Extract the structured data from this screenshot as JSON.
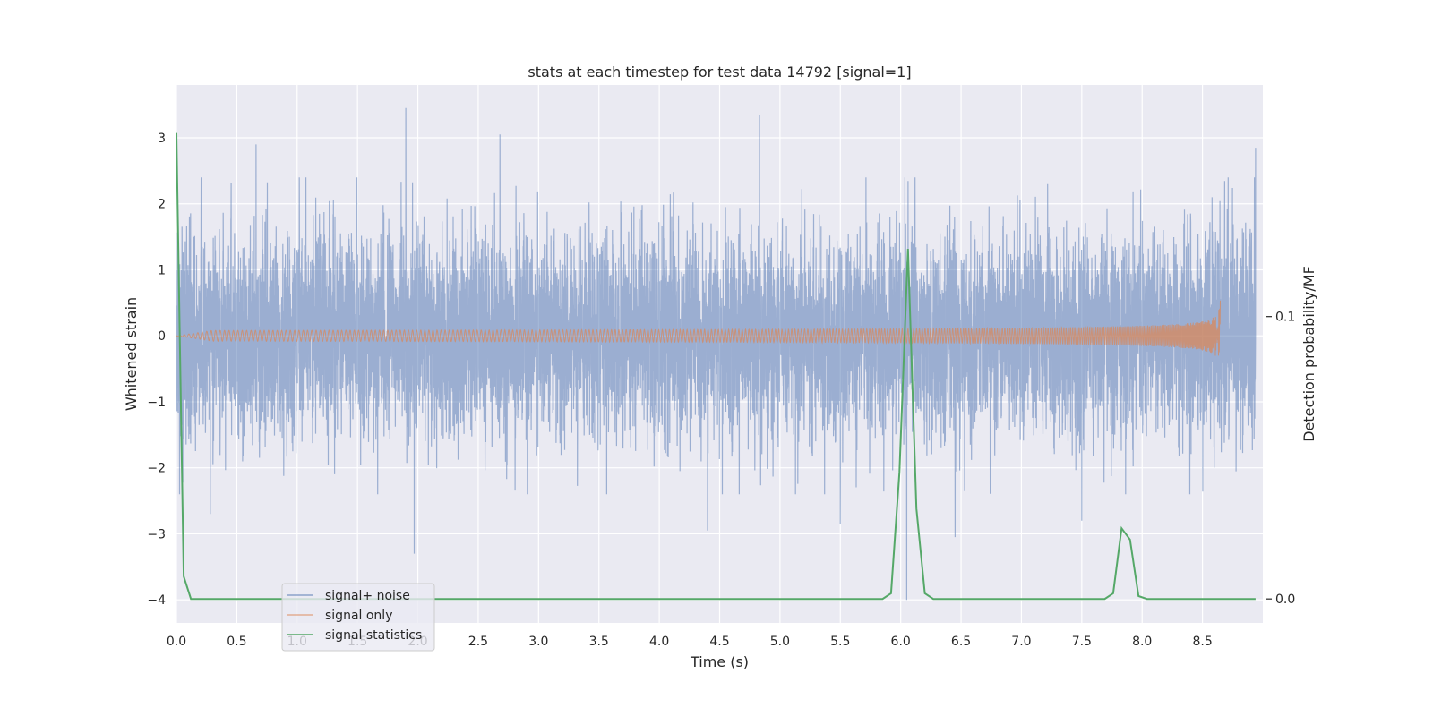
{
  "chart_data": {
    "type": "line",
    "title": "stats at each timestep for test data 14792 [signal=1]",
    "xlabel": "Time (s)",
    "ylabel": "Whitened strain",
    "y2label": "Detection probability/MF",
    "xlim": [
      0.0,
      9.0
    ],
    "ylim": [
      -4.35,
      3.8
    ],
    "y2lim": [
      -0.0085,
      0.182
    ],
    "xticks": [
      0.0,
      0.5,
      1.0,
      1.5,
      2.0,
      2.5,
      3.0,
      3.5,
      4.0,
      4.5,
      5.0,
      5.5,
      6.0,
      6.5,
      7.0,
      7.5,
      8.0,
      8.5
    ],
    "xtick_labels": [
      "0.0",
      "0.5",
      "1.0",
      "1.5",
      "2.0",
      "2.5",
      "3.0",
      "3.5",
      "4.0",
      "4.5",
      "5.0",
      "5.5",
      "6.0",
      "6.5",
      "7.0",
      "7.5",
      "8.0",
      "8.5"
    ],
    "yticks": [
      3,
      2,
      1,
      0,
      -1,
      -2,
      -3,
      -4
    ],
    "ytick_labels": [
      "3",
      "2",
      "1",
      "0",
      "−1",
      "−2",
      "−3",
      "−4"
    ],
    "y2ticks": [
      0.1,
      0.0
    ],
    "y2tick_labels": [
      "0.1",
      "0.0"
    ],
    "grid": true,
    "legend_position": "lower-left",
    "series": [
      {
        "name": "signal+ noise",
        "color": "#4c72b0",
        "axis": "left",
        "kind": "noise",
        "note_values": "dense noise roughly within [-1.8, 1.6] with spikes",
        "peaks": [
          [
            1.9,
            3.45
          ],
          [
            4.83,
            3.35
          ],
          [
            2.68,
            3.05
          ],
          [
            0.66,
            2.9
          ],
          [
            8.94,
            2.85
          ],
          [
            6.05,
            -4.0
          ],
          [
            1.97,
            -3.3
          ],
          [
            4.4,
            -2.95
          ],
          [
            6.45,
            -3.05
          ],
          [
            7.5,
            -2.8
          ],
          [
            5.5,
            -2.85
          ],
          [
            0.28,
            -2.7
          ]
        ]
      },
      {
        "name": "signal only",
        "color": "#dd8452",
        "axis": "left",
        "kind": "chirp",
        "t_merger": 8.65,
        "peak_amplitude": 0.55
      },
      {
        "name": "signal statistics",
        "color": "#55a868",
        "axis": "right",
        "kind": "line",
        "x": [
          0.0,
          0.06,
          0.12,
          0.5,
          1.0,
          2.0,
          3.0,
          4.0,
          5.0,
          5.85,
          5.92,
          5.99,
          6.06,
          6.13,
          6.2,
          6.27,
          6.5,
          7.0,
          7.5,
          7.69,
          7.76,
          7.83,
          7.9,
          7.97,
          8.04,
          8.5,
          8.94
        ],
        "y": [
          0.165,
          0.008,
          0.0,
          0.0,
          0.0,
          0.0,
          0.0,
          0.0,
          0.0,
          0.0,
          0.002,
          0.045,
          0.124,
          0.032,
          0.002,
          0.0,
          0.0,
          0.0,
          0.0,
          0.0,
          0.002,
          0.025,
          0.021,
          0.001,
          0.0,
          0.0,
          0.0
        ]
      }
    ]
  }
}
